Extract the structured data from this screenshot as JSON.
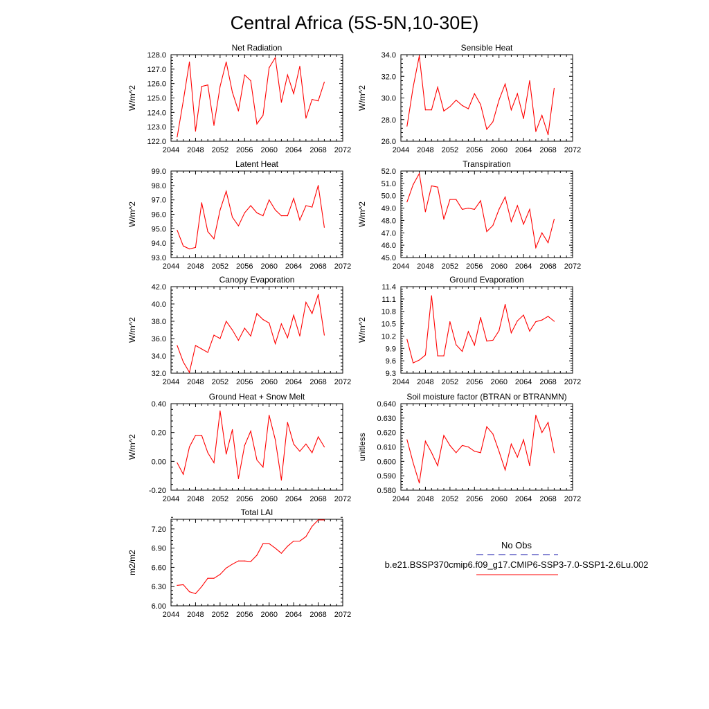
{
  "title": "Central Africa (5S-5N,10-30E)",
  "colors": {
    "model_line": "#ff0000",
    "obs_line": "#1010aa",
    "axis": "#000000"
  },
  "legend": {
    "obs_label": "No Obs",
    "model_label": "b.e21.BSSP370cmip6.f09_g17.CMIP6-SSP3-7.0-SSP1-2.6Lu.002"
  },
  "chart_data": [
    {
      "type": "line",
      "title": "Net Radiation",
      "ylabel": "W/m^2",
      "xlim": [
        2044,
        2072
      ],
      "xticks": [
        2044,
        2048,
        2052,
        2056,
        2060,
        2064,
        2068,
        2072
      ],
      "ylim": [
        122.0,
        128.0
      ],
      "yticks": [
        "122.0",
        "123.0",
        "124.0",
        "125.0",
        "126.0",
        "127.0",
        "128.0"
      ],
      "grid": false,
      "series": [
        {
          "x": [
            2045,
            2046,
            2047,
            2048,
            2049,
            2050,
            2051,
            2052,
            2053,
            2054,
            2055,
            2056,
            2057,
            2058,
            2059,
            2060,
            2061,
            2062,
            2063,
            2064,
            2065,
            2066,
            2067,
            2068,
            2069
          ],
          "values": [
            122.3,
            124.8,
            127.5,
            122.7,
            125.8,
            125.9,
            123.1,
            125.8,
            127.5,
            125.4,
            124.1,
            126.6,
            126.2,
            123.2,
            123.8,
            127.1,
            127.8,
            124.7,
            126.6,
            125.3,
            127.2,
            123.6,
            124.9,
            124.8,
            126.1
          ]
        }
      ]
    },
    {
      "type": "line",
      "title": "Sensible Heat",
      "ylabel": "W/m^2",
      "xlim": [
        2044,
        2072
      ],
      "xticks": [
        2044,
        2048,
        2052,
        2056,
        2060,
        2064,
        2068,
        2072
      ],
      "ylim": [
        26.0,
        34.0
      ],
      "yticks": [
        "26.0",
        "28.0",
        "30.0",
        "32.0",
        "34.0"
      ],
      "grid": false,
      "series": [
        {
          "x": [
            2045,
            2046,
            2047,
            2048,
            2049,
            2050,
            2051,
            2052,
            2053,
            2054,
            2055,
            2056,
            2057,
            2058,
            2059,
            2060,
            2061,
            2062,
            2063,
            2064,
            2065,
            2066,
            2067,
            2068,
            2069
          ],
          "values": [
            27.4,
            31.0,
            33.9,
            28.9,
            28.9,
            31.0,
            28.8,
            29.2,
            29.8,
            29.3,
            29.0,
            30.4,
            29.4,
            27.1,
            27.8,
            29.8,
            31.3,
            28.9,
            30.4,
            28.1,
            31.6,
            26.9,
            28.4,
            26.6,
            30.9
          ]
        }
      ]
    },
    {
      "type": "line",
      "title": "Latent Heat",
      "ylabel": "W/m^2",
      "xlim": [
        2044,
        2072
      ],
      "xticks": [
        2044,
        2048,
        2052,
        2056,
        2060,
        2064,
        2068,
        2072
      ],
      "ylim": [
        93.0,
        99.0
      ],
      "yticks": [
        "93.0",
        "94.0",
        "95.0",
        "96.0",
        "97.0",
        "98.0",
        "99.0"
      ],
      "grid": false,
      "series": [
        {
          "x": [
            2045,
            2046,
            2047,
            2048,
            2049,
            2050,
            2051,
            2052,
            2053,
            2054,
            2055,
            2056,
            2057,
            2058,
            2059,
            2060,
            2061,
            2062,
            2063,
            2064,
            2065,
            2066,
            2067,
            2068,
            2069
          ],
          "values": [
            94.9,
            93.8,
            93.6,
            93.7,
            96.8,
            94.8,
            94.3,
            96.3,
            97.6,
            95.8,
            95.2,
            96.1,
            96.6,
            96.1,
            95.9,
            97.0,
            96.3,
            95.9,
            95.9,
            97.1,
            95.6,
            96.6,
            96.5,
            98.0,
            95.1
          ]
        }
      ]
    },
    {
      "type": "line",
      "title": "Transpiration",
      "ylabel": "W/m^2",
      "xlim": [
        2044,
        2072
      ],
      "xticks": [
        2044,
        2048,
        2052,
        2056,
        2060,
        2064,
        2068,
        2072
      ],
      "ylim": [
        45.0,
        52.0
      ],
      "yticks": [
        "45.0",
        "46.0",
        "47.0",
        "48.0",
        "49.0",
        "50.0",
        "51.0",
        "52.0"
      ],
      "grid": false,
      "series": [
        {
          "x": [
            2045,
            2046,
            2047,
            2048,
            2049,
            2050,
            2051,
            2052,
            2053,
            2054,
            2055,
            2056,
            2057,
            2058,
            2059,
            2060,
            2061,
            2062,
            2063,
            2064,
            2065,
            2066,
            2067,
            2068,
            2069
          ],
          "values": [
            49.5,
            50.9,
            51.8,
            48.7,
            50.8,
            50.7,
            48.1,
            49.7,
            49.7,
            48.9,
            49.0,
            48.9,
            49.6,
            47.1,
            47.6,
            48.9,
            49.9,
            47.9,
            49.2,
            47.7,
            48.9,
            45.8,
            47.0,
            46.2,
            48.1
          ]
        }
      ]
    },
    {
      "type": "line",
      "title": "Canopy Evaporation",
      "ylabel": "W/m^2",
      "xlim": [
        2044,
        2072
      ],
      "xticks": [
        2044,
        2048,
        2052,
        2056,
        2060,
        2064,
        2068,
        2072
      ],
      "ylim": [
        32.0,
        42.0
      ],
      "yticks": [
        "32.0",
        "34.0",
        "36.0",
        "38.0",
        "40.0",
        "42.0"
      ],
      "grid": false,
      "series": [
        {
          "x": [
            2045,
            2046,
            2047,
            2048,
            2049,
            2050,
            2051,
            2052,
            2053,
            2054,
            2055,
            2056,
            2057,
            2058,
            2059,
            2060,
            2061,
            2062,
            2063,
            2064,
            2065,
            2066,
            2067,
            2068,
            2069
          ],
          "values": [
            35.2,
            33.3,
            32.1,
            35.2,
            34.8,
            34.4,
            36.4,
            36.0,
            38.0,
            37.0,
            35.8,
            37.2,
            36.3,
            38.9,
            38.2,
            37.8,
            35.4,
            37.7,
            36.1,
            38.7,
            36.3,
            40.2,
            38.9,
            41.1,
            36.4
          ]
        }
      ]
    },
    {
      "type": "line",
      "title": "Ground Evaporation",
      "ylabel": "W/m^2",
      "xlim": [
        2044,
        2072
      ],
      "xticks": [
        2044,
        2048,
        2052,
        2056,
        2060,
        2064,
        2068,
        2072
      ],
      "ylim": [
        9.3,
        11.4
      ],
      "yticks": [
        "9.3",
        "9.6",
        "9.9",
        "10.2",
        "10.5",
        "10.8",
        "11.1",
        "11.4"
      ],
      "grid": false,
      "series": [
        {
          "x": [
            2045,
            2046,
            2047,
            2048,
            2049,
            2050,
            2051,
            2052,
            2053,
            2054,
            2055,
            2056,
            2057,
            2058,
            2059,
            2060,
            2061,
            2062,
            2063,
            2064,
            2065,
            2066,
            2067,
            2068,
            2069
          ],
          "values": [
            10.12,
            9.55,
            9.62,
            9.74,
            11.18,
            9.72,
            9.72,
            10.55,
            9.99,
            9.83,
            10.31,
            9.98,
            10.65,
            10.08,
            10.1,
            10.33,
            10.97,
            10.28,
            10.57,
            10.71,
            10.32,
            10.55,
            10.59,
            10.68,
            10.56
          ]
        }
      ]
    },
    {
      "type": "line",
      "title": "Ground Heat + Snow Melt",
      "ylabel": "W/m^2",
      "xlim": [
        2044,
        2072
      ],
      "xticks": [
        2044,
        2048,
        2052,
        2056,
        2060,
        2064,
        2068,
        2072
      ],
      "ylim": [
        -0.2,
        0.4
      ],
      "yticks": [
        "-0.20",
        "0.00",
        "0.20",
        "0.40"
      ],
      "grid": false,
      "series": [
        {
          "x": [
            2045,
            2046,
            2047,
            2048,
            2049,
            2050,
            2051,
            2052,
            2053,
            2054,
            2055,
            2056,
            2057,
            2058,
            2059,
            2060,
            2061,
            2062,
            2063,
            2064,
            2065,
            2066,
            2067,
            2068,
            2069
          ],
          "values": [
            -0.01,
            -0.09,
            0.1,
            0.18,
            0.18,
            0.06,
            -0.01,
            0.35,
            0.05,
            0.22,
            -0.12,
            0.11,
            0.21,
            0.01,
            -0.04,
            0.32,
            0.15,
            -0.13,
            0.27,
            0.12,
            0.07,
            0.12,
            0.06,
            0.17,
            0.1
          ]
        }
      ]
    },
    {
      "type": "line",
      "title": "Soil moisture factor (BTRAN or BTRANMN)",
      "ylabel": "unitless",
      "xlim": [
        2044,
        2072
      ],
      "xticks": [
        2044,
        2048,
        2052,
        2056,
        2060,
        2064,
        2068,
        2072
      ],
      "ylim": [
        0.58,
        0.64
      ],
      "yticks": [
        "0.580",
        "0.590",
        "0.600",
        "0.610",
        "0.620",
        "0.630",
        "0.640"
      ],
      "grid": false,
      "series": [
        {
          "x": [
            2045,
            2046,
            2047,
            2048,
            2049,
            2050,
            2051,
            2052,
            2053,
            2054,
            2055,
            2056,
            2057,
            2058,
            2059,
            2060,
            2061,
            2062,
            2063,
            2064,
            2065,
            2066,
            2067,
            2068,
            2069
          ],
          "values": [
            0.615,
            0.599,
            0.585,
            0.614,
            0.606,
            0.597,
            0.618,
            0.611,
            0.606,
            0.611,
            0.61,
            0.607,
            0.606,
            0.624,
            0.619,
            0.607,
            0.594,
            0.612,
            0.603,
            0.615,
            0.597,
            0.632,
            0.62,
            0.627,
            0.606
          ]
        }
      ]
    },
    {
      "type": "line",
      "title": "Total LAI",
      "ylabel": "m2/m2",
      "xlim": [
        2044,
        2072
      ],
      "xticks": [
        2044,
        2048,
        2052,
        2056,
        2060,
        2064,
        2068,
        2072
      ],
      "ylim": [
        6.0,
        7.35
      ],
      "yticks": [
        "6.00",
        "6.30",
        "6.60",
        "6.90",
        "7.20"
      ],
      "grid": false,
      "series": [
        {
          "x": [
            2045,
            2046,
            2047,
            2048,
            2049,
            2050,
            2051,
            2052,
            2053,
            2054,
            2055,
            2056,
            2057,
            2058,
            2059,
            2060,
            2061,
            2062,
            2063,
            2064,
            2065,
            2066,
            2067,
            2068,
            2069
          ],
          "values": [
            6.32,
            6.33,
            6.22,
            6.19,
            6.3,
            6.43,
            6.43,
            6.49,
            6.59,
            6.65,
            6.7,
            6.7,
            6.69,
            6.79,
            6.97,
            6.97,
            6.9,
            6.82,
            6.93,
            7.01,
            7.01,
            7.08,
            7.24,
            7.34,
            7.34
          ]
        }
      ]
    }
  ]
}
